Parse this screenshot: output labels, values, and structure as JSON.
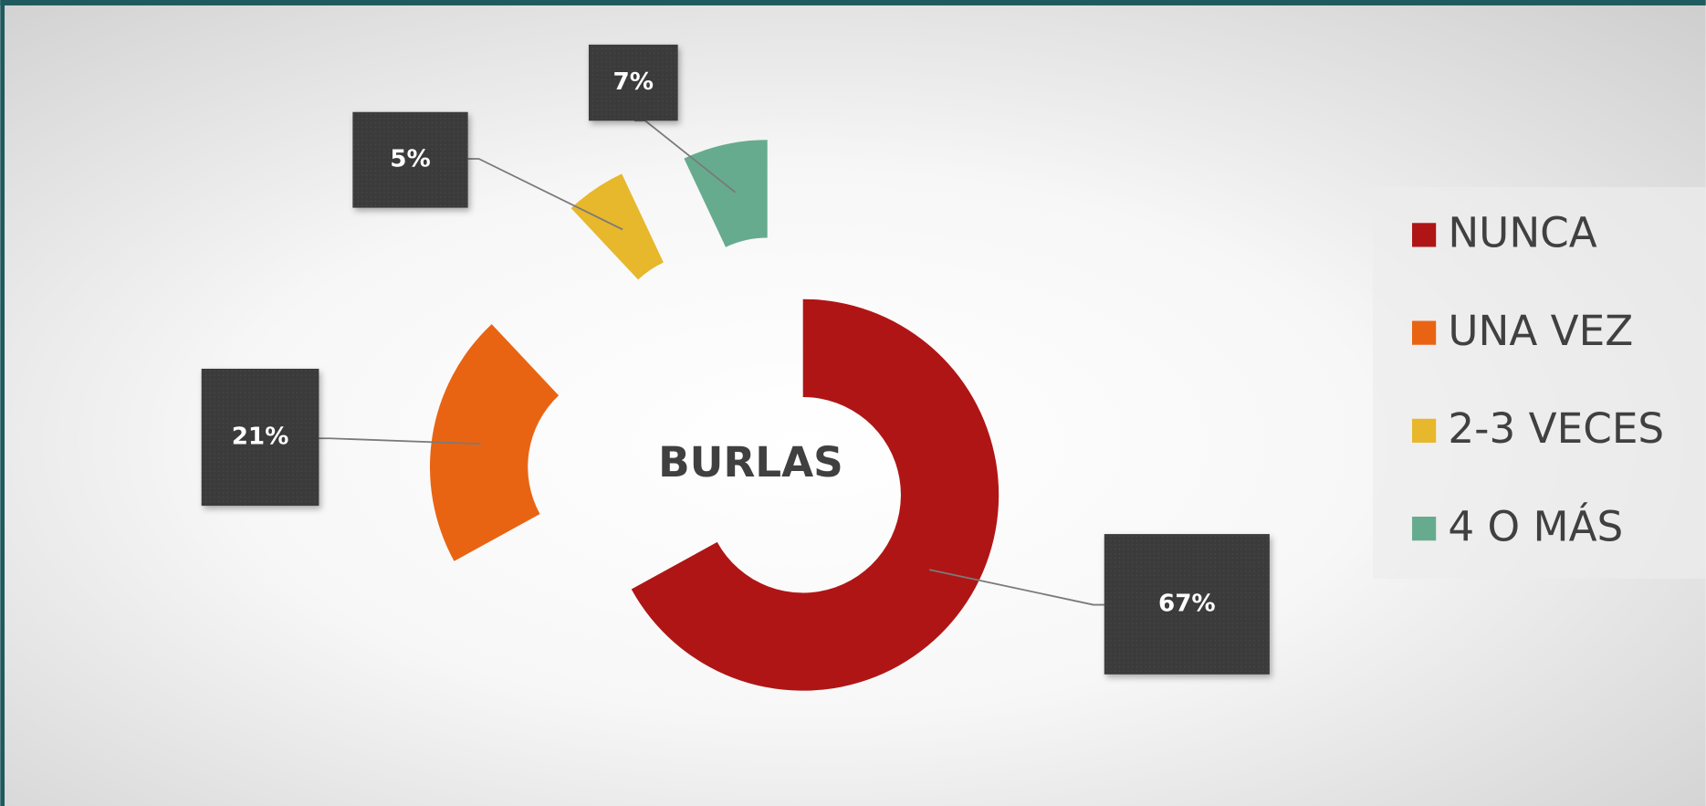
{
  "chart_data": {
    "type": "doughnut",
    "title": "BURLAS",
    "categories": [
      "NUNCA",
      "UNA VEZ",
      "2-3 VECES",
      "4 O MÁS"
    ],
    "values": [
      67,
      21,
      5,
      7
    ],
    "value_labels": [
      "67%",
      "21%",
      "5%",
      "7%"
    ],
    "colors": [
      "#b01515",
      "#e96412",
      "#e7b72c",
      "#67ab8f"
    ],
    "legend": "right"
  }
}
